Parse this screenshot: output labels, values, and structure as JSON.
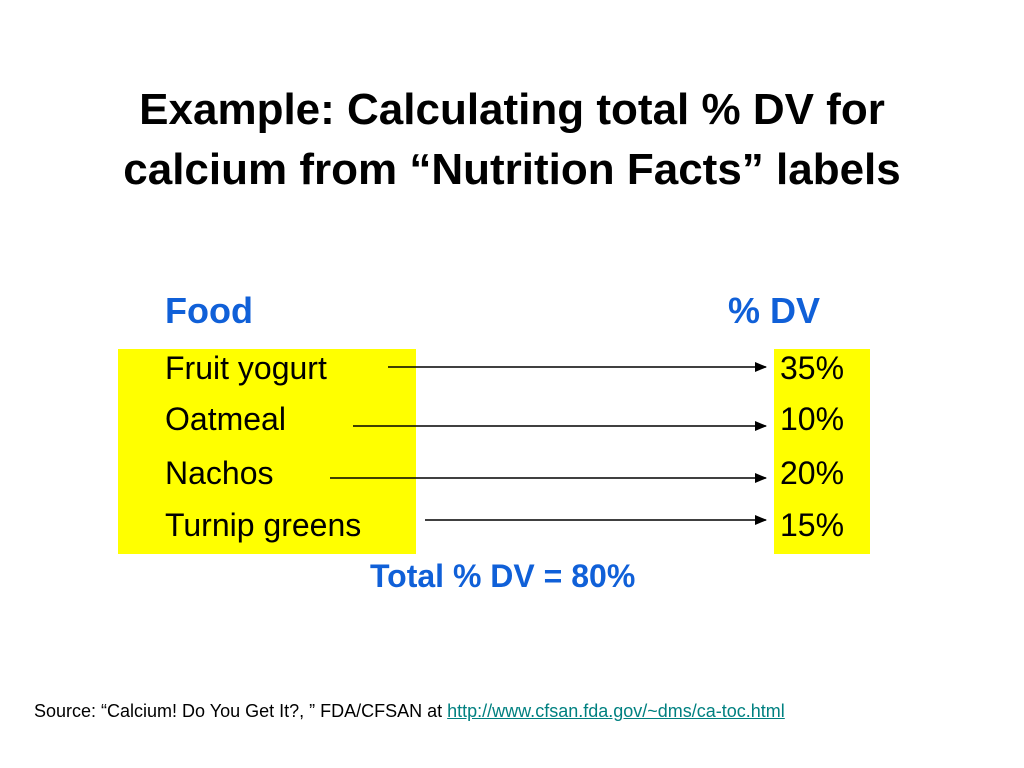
{
  "title": {
    "line1": "Example: Calculating total % DV for",
    "line2": "calcium from “Nutrition Facts” labels"
  },
  "table": {
    "header_food": "Food",
    "header_dv": "% DV",
    "rows": [
      {
        "food": "Fruit yogurt",
        "dv": "35%"
      },
      {
        "food": "Oatmeal",
        "dv": "10%"
      },
      {
        "food": "Nachos",
        "dv": "20%"
      },
      {
        "food": "Turnip greens",
        "dv": "15%"
      }
    ],
    "total": "Total % DV = 80%"
  },
  "source": {
    "prefix": "Source: “Calcium! Do You Get It?, ” FDA/CFSAN at ",
    "link_text": "http://www.cfsan.fda.gov/~dms/ca-toc.html"
  },
  "colors": {
    "accent_blue": "#1060d8",
    "highlight_yellow": "#ffff00",
    "link_teal": "#008080"
  }
}
